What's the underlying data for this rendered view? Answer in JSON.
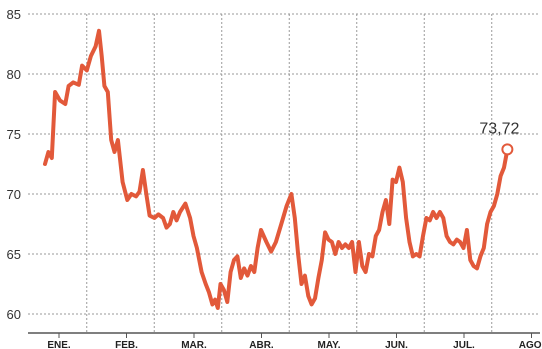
{
  "chart_data": {
    "type": "line",
    "title": "",
    "xlabel": "",
    "ylabel": "",
    "ylim": [
      60,
      85
    ],
    "yticks": [
      60,
      65,
      70,
      75,
      80,
      85
    ],
    "grid": true,
    "categories": [
      "ENE.",
      "FEB.",
      "MAR.",
      "ABR.",
      "MAY.",
      "JUN.",
      "JUL.",
      "AGO."
    ],
    "x_range": [
      0,
      7.9
    ],
    "end_label": "73,72",
    "line_color": "#e2593a",
    "series": [
      {
        "name": "",
        "points": [
          [
            0.0,
            72.5
          ],
          [
            0.05,
            73.5
          ],
          [
            0.1,
            73.0
          ],
          [
            0.15,
            78.5
          ],
          [
            0.22,
            77.8
          ],
          [
            0.3,
            77.5
          ],
          [
            0.35,
            79.0
          ],
          [
            0.42,
            79.3
          ],
          [
            0.5,
            79.1
          ],
          [
            0.55,
            80.7
          ],
          [
            0.62,
            80.3
          ],
          [
            0.68,
            81.5
          ],
          [
            0.75,
            82.3
          ],
          [
            0.8,
            83.6
          ],
          [
            0.84,
            81.5
          ],
          [
            0.88,
            79.0
          ],
          [
            0.93,
            78.5
          ],
          [
            0.98,
            74.5
          ],
          [
            1.03,
            73.5
          ],
          [
            1.08,
            74.5
          ],
          [
            1.15,
            71.0
          ],
          [
            1.22,
            69.5
          ],
          [
            1.28,
            70.0
          ],
          [
            1.35,
            69.8
          ],
          [
            1.4,
            70.2
          ],
          [
            1.45,
            72.0
          ],
          [
            1.5,
            70.0
          ],
          [
            1.55,
            68.2
          ],
          [
            1.62,
            68.0
          ],
          [
            1.68,
            68.3
          ],
          [
            1.75,
            68.0
          ],
          [
            1.8,
            67.2
          ],
          [
            1.85,
            67.5
          ],
          [
            1.9,
            68.5
          ],
          [
            1.95,
            67.8
          ],
          [
            2.0,
            68.5
          ],
          [
            2.08,
            69.2
          ],
          [
            2.15,
            68.0
          ],
          [
            2.2,
            66.5
          ],
          [
            2.25,
            65.5
          ],
          [
            2.32,
            63.5
          ],
          [
            2.38,
            62.5
          ],
          [
            2.43,
            61.8
          ],
          [
            2.48,
            60.8
          ],
          [
            2.52,
            61.2
          ],
          [
            2.56,
            60.5
          ],
          [
            2.6,
            62.5
          ],
          [
            2.65,
            62.0
          ],
          [
            2.7,
            61.0
          ],
          [
            2.75,
            63.5
          ],
          [
            2.8,
            64.5
          ],
          [
            2.85,
            64.8
          ],
          [
            2.9,
            63.0
          ],
          [
            2.95,
            63.8
          ],
          [
            3.0,
            63.2
          ],
          [
            3.05,
            64.0
          ],
          [
            3.1,
            63.5
          ],
          [
            3.15,
            65.5
          ],
          [
            3.2,
            67.0
          ],
          [
            3.28,
            66.0
          ],
          [
            3.35,
            65.2
          ],
          [
            3.42,
            66.0
          ],
          [
            3.5,
            67.5
          ],
          [
            3.58,
            69.0
          ],
          [
            3.65,
            70.0
          ],
          [
            3.7,
            68.0
          ],
          [
            3.75,
            65.0
          ],
          [
            3.8,
            62.5
          ],
          [
            3.85,
            63.2
          ],
          [
            3.9,
            61.5
          ],
          [
            3.95,
            60.8
          ],
          [
            4.0,
            61.3
          ],
          [
            4.05,
            63.0
          ],
          [
            4.1,
            64.5
          ],
          [
            4.15,
            66.8
          ],
          [
            4.2,
            66.2
          ],
          [
            4.25,
            66.0
          ],
          [
            4.3,
            65.0
          ],
          [
            4.35,
            66.0
          ],
          [
            4.4,
            65.5
          ],
          [
            4.45,
            65.8
          ],
          [
            4.5,
            65.5
          ],
          [
            4.55,
            66.0
          ],
          [
            4.6,
            63.5
          ],
          [
            4.65,
            66.0
          ],
          [
            4.7,
            64.0
          ],
          [
            4.75,
            63.5
          ],
          [
            4.8,
            65.0
          ],
          [
            4.85,
            64.8
          ],
          [
            4.9,
            66.5
          ],
          [
            4.95,
            67.0
          ],
          [
            5.0,
            68.5
          ],
          [
            5.05,
            69.5
          ],
          [
            5.1,
            67.5
          ],
          [
            5.15,
            71.2
          ],
          [
            5.2,
            71.0
          ],
          [
            5.25,
            72.2
          ],
          [
            5.3,
            71.0
          ],
          [
            5.35,
            68.0
          ],
          [
            5.4,
            66.0
          ],
          [
            5.45,
            64.8
          ],
          [
            5.5,
            65.0
          ],
          [
            5.55,
            64.8
          ],
          [
            5.6,
            66.5
          ],
          [
            5.65,
            68.0
          ],
          [
            5.7,
            67.8
          ],
          [
            5.75,
            68.5
          ],
          [
            5.8,
            68.0
          ],
          [
            5.85,
            68.5
          ],
          [
            5.9,
            68.0
          ],
          [
            5.95,
            66.5
          ],
          [
            6.0,
            66.0
          ],
          [
            6.05,
            65.8
          ],
          [
            6.1,
            66.2
          ],
          [
            6.15,
            66.0
          ],
          [
            6.2,
            65.5
          ],
          [
            6.25,
            67.0
          ],
          [
            6.3,
            64.5
          ],
          [
            6.35,
            64.0
          ],
          [
            6.4,
            63.8
          ],
          [
            6.45,
            64.8
          ],
          [
            6.5,
            65.5
          ],
          [
            6.55,
            67.5
          ],
          [
            6.6,
            68.5
          ],
          [
            6.65,
            69.0
          ],
          [
            6.7,
            70.0
          ],
          [
            6.75,
            71.5
          ],
          [
            6.8,
            72.2
          ],
          [
            6.85,
            73.72
          ]
        ]
      }
    ]
  }
}
